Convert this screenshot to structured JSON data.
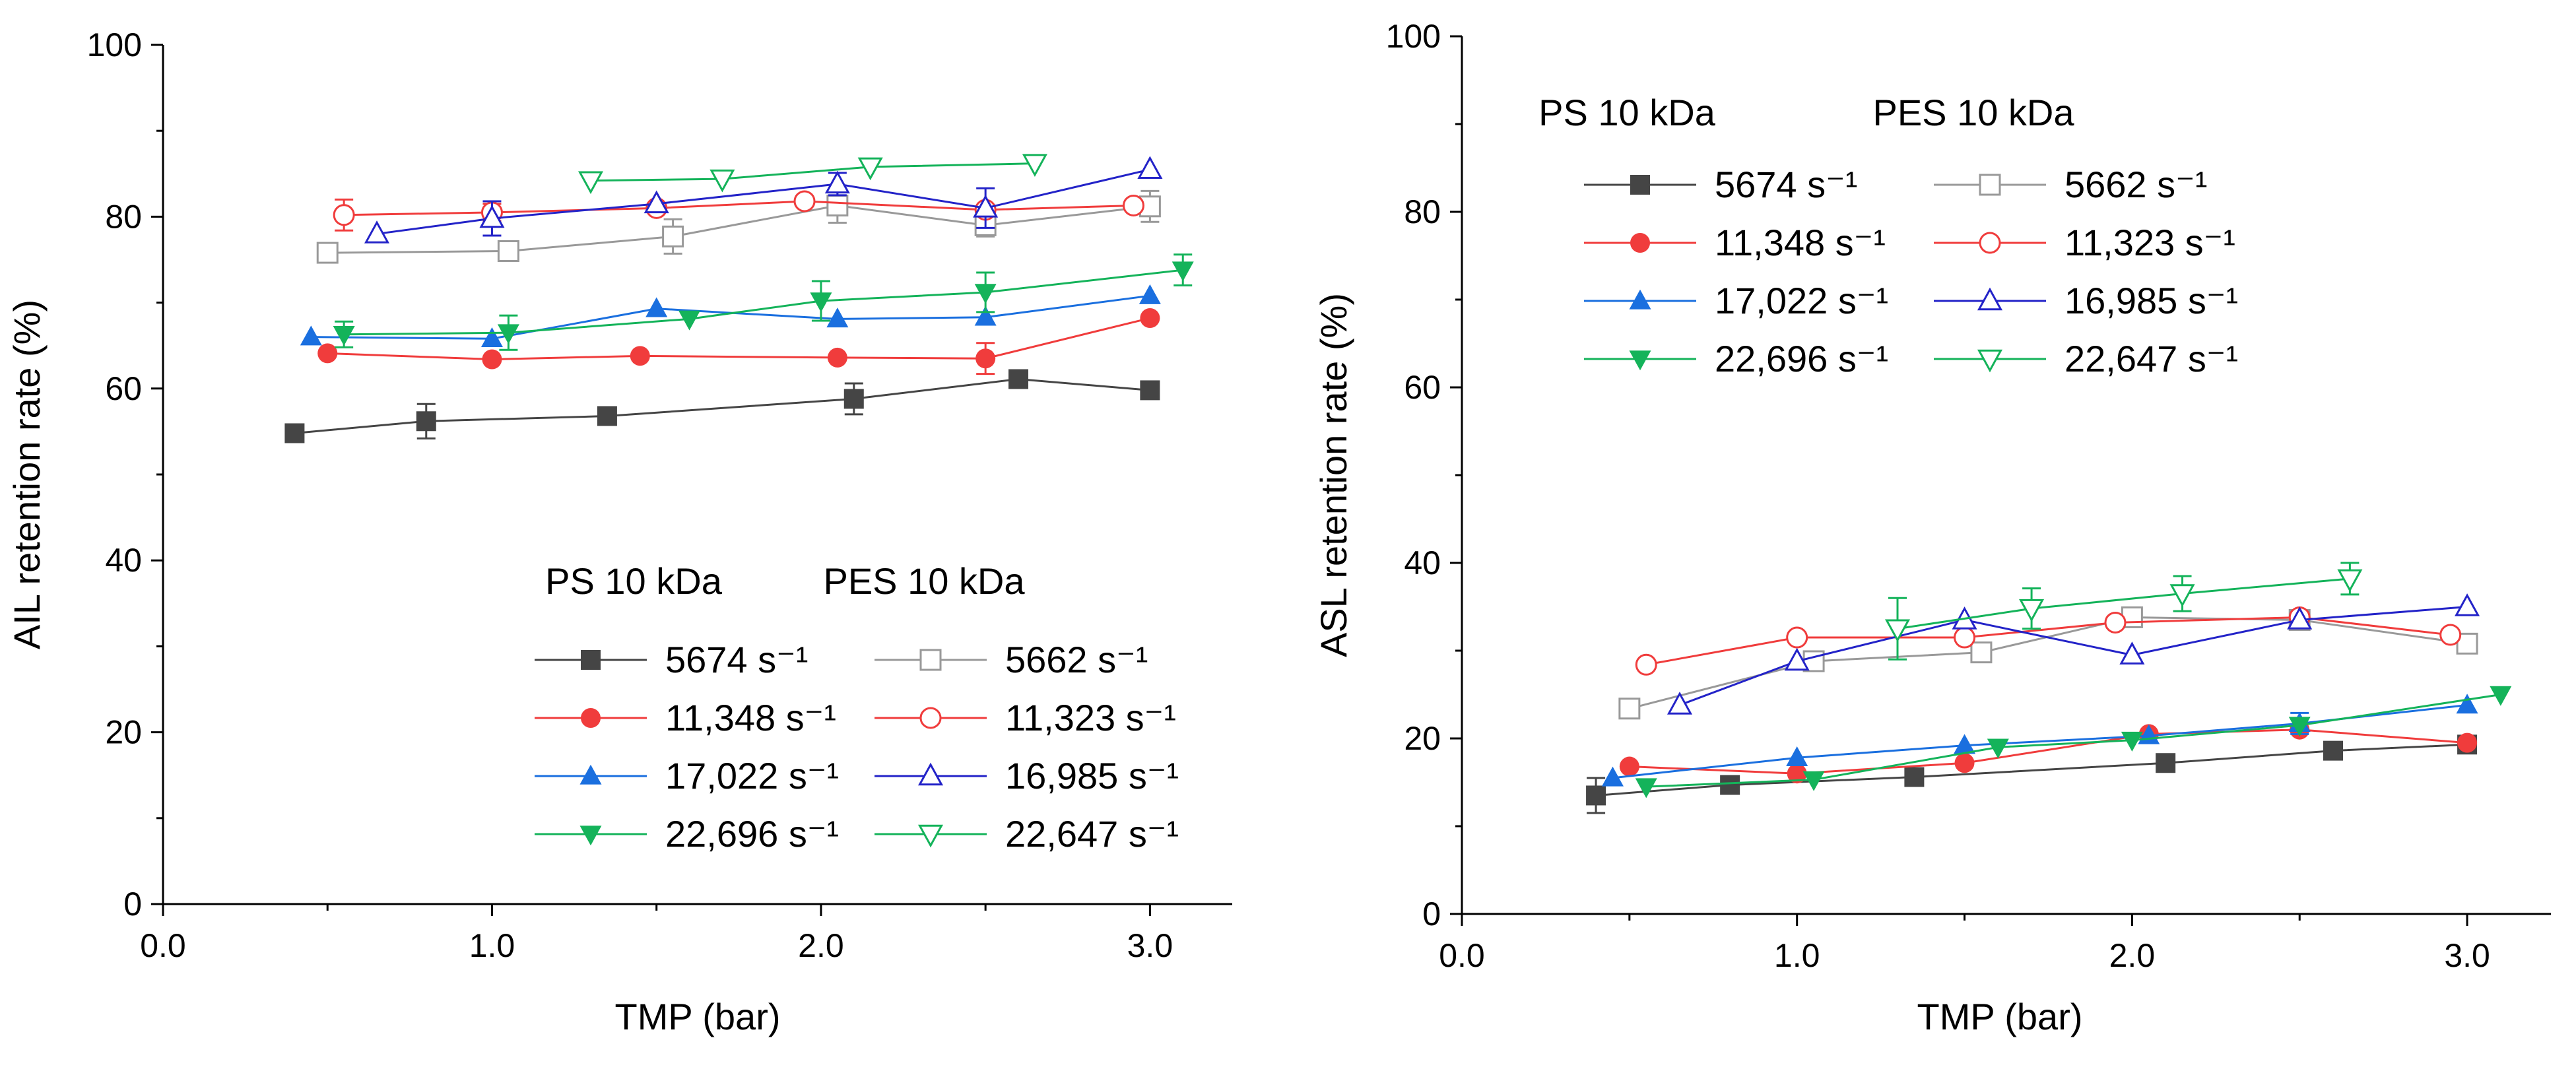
{
  "chart_data": [
    {
      "type": "line",
      "xlabel": "TMP (bar)",
      "ylabel": "AIL retention rate (%)",
      "xlim": [
        0,
        3.25
      ],
      "ylim": [
        0,
        100
      ],
      "xticks": [
        0,
        1,
        2,
        3
      ],
      "xtick_labels": [
        "0.0",
        "1.0",
        "2.0",
        "3.0"
      ],
      "yticks": [
        0,
        20,
        40,
        60,
        80,
        100
      ],
      "ytick_labels": [
        "0",
        "20",
        "40",
        "60",
        "80",
        "100"
      ],
      "grid": false,
      "legend": {
        "position": "bottom-right",
        "group_titles": [
          "PS 10 kDa",
          "PES 10 kDa"
        ]
      },
      "series": [
        {
          "name": "5674 s⁻¹",
          "group": "PS 10 kDa",
          "color": "#454545",
          "marker": "square",
          "filled": true,
          "x": [
            0.4,
            0.8,
            1.35,
            2.1,
            2.6,
            3.0
          ],
          "y": [
            54.8,
            56.2,
            56.8,
            58.8,
            61.1,
            59.8
          ],
          "err": [
            1.0,
            2.0,
            0,
            1.8,
            0,
            0
          ]
        },
        {
          "name": "11,348 s⁻¹",
          "group": "PS 10 kDa",
          "color": "#f03c3c",
          "marker": "circle",
          "filled": true,
          "x": [
            0.5,
            1.0,
            1.45,
            2.05,
            2.5,
            3.0
          ],
          "y": [
            64.1,
            63.4,
            63.8,
            63.6,
            63.5,
            68.2
          ],
          "err": [
            0,
            0,
            0,
            0,
            1.8,
            0
          ]
        },
        {
          "name": "17,022 s⁻¹",
          "group": "PS 10 kDa",
          "color": "#1a6fdf",
          "marker": "triangle-up",
          "filled": true,
          "x": [
            0.45,
            1.0,
            1.5,
            2.05,
            2.5,
            3.0
          ],
          "y": [
            66.0,
            65.8,
            69.3,
            68.1,
            68.3,
            70.8
          ],
          "err": [
            0,
            0,
            0,
            0,
            0,
            0
          ]
        },
        {
          "name": "22,696 s⁻¹",
          "group": "PS 10 kDa",
          "color": "#14b35a",
          "marker": "triangle-down",
          "filled": true,
          "x": [
            0.55,
            1.05,
            1.6,
            2.0,
            2.5,
            3.1
          ],
          "y": [
            66.3,
            66.5,
            68.1,
            70.2,
            71.2,
            73.8
          ],
          "err": [
            1.5,
            2.0,
            0,
            2.3,
            2.3,
            1.8
          ]
        },
        {
          "name": "5662 s⁻¹",
          "group": "PES 10 kDa",
          "color": "#999999",
          "marker": "square",
          "filled": false,
          "x": [
            0.5,
            1.05,
            1.55,
            2.05,
            2.5,
            3.0
          ],
          "y": [
            75.8,
            76.0,
            77.7,
            81.3,
            79.0,
            81.2
          ],
          "err": [
            0.8,
            1.0,
            2.0,
            2.0,
            1.3,
            1.8
          ]
        },
        {
          "name": "11,323 s⁻¹",
          "group": "PES 10 kDa",
          "color": "#f03c3c",
          "marker": "circle",
          "filled": false,
          "x": [
            0.55,
            1.0,
            1.5,
            1.95,
            2.5,
            2.95
          ],
          "y": [
            80.2,
            80.5,
            81.0,
            81.8,
            80.8,
            81.3
          ],
          "err": [
            1.8,
            1.0,
            0,
            0,
            0,
            0
          ]
        },
        {
          "name": "16,985 s⁻¹",
          "group": "PES 10 kDa",
          "color": "#2323c8",
          "marker": "triangle-up",
          "filled": false,
          "x": [
            0.65,
            1.0,
            1.5,
            2.05,
            2.5,
            3.0
          ],
          "y": [
            78.0,
            79.8,
            81.5,
            83.8,
            81.0,
            85.5
          ],
          "err": [
            0,
            2.0,
            0,
            1.3,
            2.3,
            0
          ]
        },
        {
          "name": "22,647 s⁻¹",
          "group": "PES 10 kDa",
          "color": "#14b35a",
          "marker": "triangle-down",
          "filled": false,
          "x": [
            1.3,
            1.7,
            2.15,
            2.65
          ],
          "y": [
            84.2,
            84.4,
            85.8,
            86.2
          ],
          "err": [
            0,
            0,
            0,
            0
          ]
        }
      ]
    },
    {
      "type": "line",
      "xlabel": "TMP (bar)",
      "ylabel": "ASL retention rate (%)",
      "xlim": [
        0,
        3.25
      ],
      "ylim": [
        0,
        100
      ],
      "xticks": [
        0,
        1,
        2,
        3
      ],
      "xtick_labels": [
        "0.0",
        "1.0",
        "2.0",
        "3.0"
      ],
      "yticks": [
        0,
        20,
        40,
        60,
        80,
        100
      ],
      "ytick_labels": [
        "0",
        "20",
        "40",
        "60",
        "80",
        "100"
      ],
      "grid": false,
      "legend": {
        "position": "top-left",
        "group_titles": [
          "PS 10 kDa",
          "PES 10 kDa"
        ]
      },
      "series": [
        {
          "name": "5674 s⁻¹",
          "group": "PS 10 kDa",
          "color": "#454545",
          "marker": "square",
          "filled": true,
          "x": [
            0.4,
            0.8,
            1.35,
            2.1,
            2.6,
            3.0
          ],
          "y": [
            13.5,
            14.7,
            15.6,
            17.2,
            18.6,
            19.3
          ],
          "err": [
            2.0,
            0,
            0,
            0,
            0,
            0
          ]
        },
        {
          "name": "11,348 s⁻¹",
          "group": "PS 10 kDa",
          "color": "#f03c3c",
          "marker": "circle",
          "filled": true,
          "x": [
            0.5,
            1.0,
            1.5,
            2.05,
            2.5,
            3.0
          ],
          "y": [
            16.8,
            16.0,
            17.2,
            20.5,
            21.0,
            19.5
          ],
          "err": [
            0,
            0,
            0,
            0,
            0,
            0
          ]
        },
        {
          "name": "17,022 s⁻¹",
          "group": "PS 10 kDa",
          "color": "#1a6fdf",
          "marker": "triangle-up",
          "filled": true,
          "x": [
            0.45,
            1.0,
            1.5,
            2.05,
            2.5,
            3.0
          ],
          "y": [
            15.5,
            17.8,
            19.2,
            20.3,
            21.7,
            23.8
          ],
          "err": [
            0,
            0,
            0,
            0,
            1.2,
            0
          ]
        },
        {
          "name": "22,696 s⁻¹",
          "group": "PS 10 kDa",
          "color": "#14b35a",
          "marker": "triangle-down",
          "filled": true,
          "x": [
            0.55,
            1.05,
            1.6,
            2.0,
            2.5,
            3.1
          ],
          "y": [
            14.5,
            15.3,
            19.0,
            19.8,
            21.5,
            25.0
          ],
          "err": [
            0,
            0,
            0,
            0,
            0,
            0
          ]
        },
        {
          "name": "5662 s⁻¹",
          "group": "PES 10 kDa",
          "color": "#999999",
          "marker": "square",
          "filled": false,
          "x": [
            0.5,
            1.05,
            1.55,
            2.0,
            2.5,
            3.0
          ],
          "y": [
            23.4,
            28.8,
            29.8,
            33.8,
            33.5,
            30.8
          ],
          "err": [
            0,
            0,
            0,
            0,
            0,
            0
          ]
        },
        {
          "name": "11,323 s⁻¹",
          "group": "PES 10 kDa",
          "color": "#f03c3c",
          "marker": "circle",
          "filled": false,
          "x": [
            0.55,
            1.0,
            1.5,
            1.95,
            2.5,
            2.95
          ],
          "y": [
            28.4,
            31.5,
            31.5,
            33.2,
            33.8,
            31.8
          ],
          "err": [
            0,
            0,
            0,
            0,
            0,
            0
          ]
        },
        {
          "name": "16,985 s⁻¹",
          "group": "PES 10 kDa",
          "color": "#2323c8",
          "marker": "triangle-up",
          "filled": false,
          "x": [
            0.65,
            1.0,
            1.5,
            2.0,
            2.5,
            3.0
          ],
          "y": [
            23.8,
            28.8,
            33.5,
            29.5,
            33.5,
            35.0
          ],
          "err": [
            0,
            0,
            0,
            0,
            0,
            0
          ]
        },
        {
          "name": "22,647 s⁻¹",
          "group": "PES 10 kDa",
          "color": "#14b35a",
          "marker": "triangle-down",
          "filled": false,
          "x": [
            1.3,
            1.7,
            2.15,
            2.65
          ],
          "y": [
            32.5,
            34.8,
            36.5,
            38.2
          ],
          "err": [
            3.5,
            2.3,
            2.0,
            1.8
          ]
        }
      ]
    }
  ]
}
